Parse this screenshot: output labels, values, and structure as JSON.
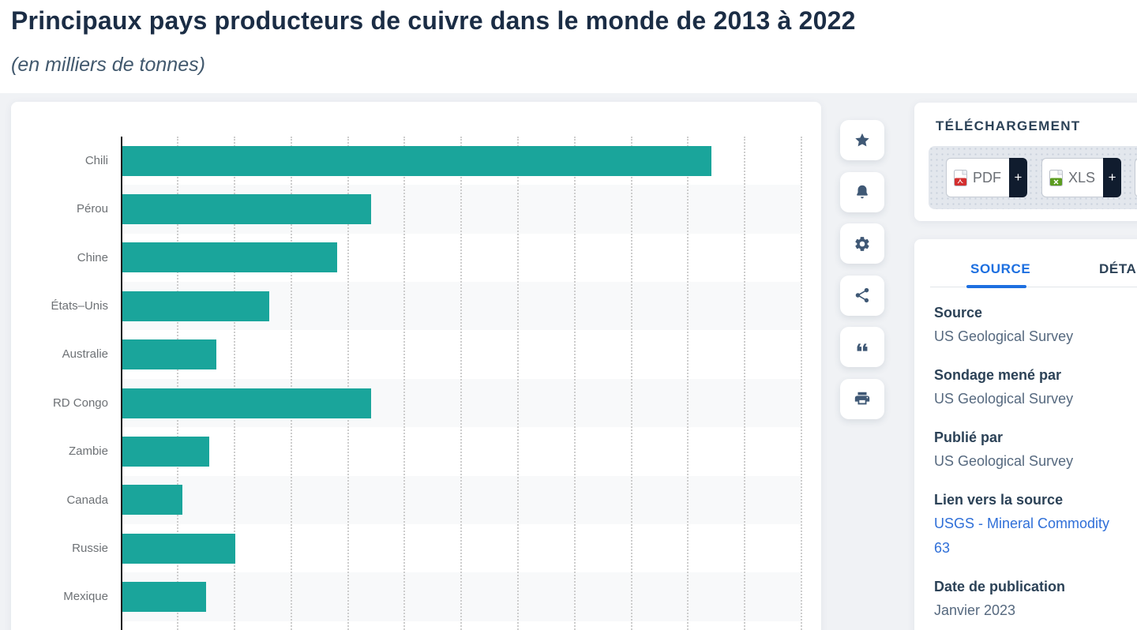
{
  "page": {
    "title": "Principaux pays producteurs de cuivre dans le monde de 2013 à 2022",
    "subtitle": "(en milliers de tonnes)"
  },
  "chart_data": {
    "type": "bar",
    "orientation": "horizontal",
    "title": "Principaux pays producteurs de cuivre dans le monde de 2013 à 2022",
    "unit_label": "en milliers de tonnes",
    "categories": [
      "Chili",
      "Pérou",
      "Chine",
      "États–Unis",
      "Australie",
      "RD Congo",
      "Zambie",
      "Canada",
      "Russie",
      "Mexique"
    ],
    "values": [
      5200,
      2200,
      1900,
      1300,
      830,
      2200,
      770,
      530,
      1000,
      740
    ],
    "xlim": [
      0,
      6000
    ],
    "grid_interval": 500,
    "grid_style": "dotted-vertical",
    "bar_color": "#1aa59b",
    "row_stripe_color": "#f8f9fa",
    "legend": "none"
  },
  "toolbar": {
    "icons": [
      "star-icon",
      "bell-icon",
      "gear-icon",
      "share-icon",
      "quote-icon",
      "print-icon"
    ]
  },
  "download": {
    "heading": "TÉLÉCHARGEMENT",
    "buttons": [
      {
        "label": "PDF",
        "plus": "+",
        "icon_color": "#d32f2f"
      },
      {
        "label": "XLS",
        "plus": "+",
        "icon_color": "#5b9c1f"
      }
    ]
  },
  "panel": {
    "tabs": [
      {
        "label": "SOURCE",
        "active": true
      },
      {
        "label": "DÉTAILS",
        "active": false
      }
    ],
    "fields": [
      {
        "label": "Source",
        "value": "US Geological Survey"
      },
      {
        "label": "Sondage mené par",
        "value": "US Geological Survey"
      },
      {
        "label": "Publié par",
        "value": "US Geological Survey"
      },
      {
        "label": "Lien vers la source",
        "value_line1": "USGS - Mineral Commodity",
        "value_line2": "63",
        "link": true
      },
      {
        "label": "Date de publication",
        "value": "Janvier 2023"
      }
    ]
  },
  "colors": {
    "accent_teal": "#1aa59b",
    "title_navy": "#1b2d45",
    "tab_blue": "#1d6fe0",
    "link_blue": "#2f6fd8",
    "icon_slate": "#3f5875",
    "plus_dark": "#101c2e",
    "page_bg": "#f0f2f5"
  }
}
